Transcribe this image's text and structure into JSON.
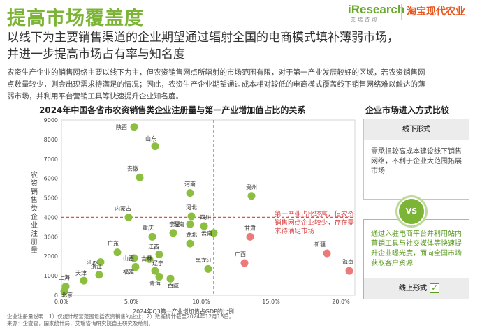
{
  "header": {
    "title": "提高市场覆盖度",
    "logo_iresearch": "iResearch",
    "logo_iresearch_sub": "艾瑞咨询",
    "logo_taobao": "淘宝现代农业"
  },
  "headline": {
    "line1": "以线下为主要销售渠道的企业期望通过辐射全国的电商模式填补薄弱市场，",
    "line2": "并进一步提高市场占有率与知名度"
  },
  "intro": {
    "line1": "农资生产企业的销售网络主要以线下为主，但农资销售网点所辐射的市场范围有限，对于第一产业发展较好的区域，若农资销售网",
    "line2": "点数量较少，则会出现需求待满足的情况；因此，农资生产企业期望通过成本相对较低的电商模式覆盖线下销售网络难以触达的薄",
    "line3": "弱市场，并利用平台营销工具等快速提升企业知名度。"
  },
  "chart_data": {
    "type": "scatter",
    "title": "2024年中国各省市农资销售类企业注册量与第一产业增加值占比的关系",
    "xlabel": "2024年Q3第一产业增加值占GDP的比例",
    "ylabel": "农资销售类企业注册量",
    "xlim": [
      0,
      21
    ],
    "ylim": [
      0,
      9000
    ],
    "x_ticks": [
      "0.0%",
      "5.0%",
      "10.0%",
      "15.0%",
      "20.0%"
    ],
    "y_ticks": [
      "0",
      "1000",
      "2000",
      "3000",
      "4000",
      "5000",
      "6000",
      "7000",
      "8000",
      "9000"
    ],
    "threshold_x": 10.9,
    "threshold_y": 4000,
    "colors": {
      "green": "#8cbf3f",
      "red": "#ec7a7a"
    },
    "points": [
      {
        "name": "陕西",
        "x": 5.2,
        "y": 8650,
        "group": "green"
      },
      {
        "name": "山东",
        "x": 6.7,
        "y": 7650,
        "group": "green"
      },
      {
        "name": "安徽",
        "x": 5.6,
        "y": 6050,
        "group": "green"
      },
      {
        "name": "河南",
        "x": 9.2,
        "y": 5250,
        "group": "green"
      },
      {
        "name": "贵州",
        "x": 13.6,
        "y": 5100,
        "group": "green"
      },
      {
        "name": "内蒙古",
        "x": 4.8,
        "y": 4000,
        "group": "green"
      },
      {
        "name": "河北",
        "x": 9.3,
        "y": 4050,
        "group": "green"
      },
      {
        "name": "湖南",
        "x": 9.2,
        "y": 3650,
        "group": "green"
      },
      {
        "name": "四川",
        "x": 10.2,
        "y": 3550,
        "group": "green"
      },
      {
        "name": "重庆",
        "x": 6.5,
        "y": 3000,
        "group": "green"
      },
      {
        "name": "云南",
        "x": 10.9,
        "y": 3200,
        "group": "green"
      },
      {
        "name": "宁夏",
        "x": 8.0,
        "y": 3200,
        "group": "green"
      },
      {
        "name": "甘肃",
        "x": 13.5,
        "y": 3000,
        "group": "red"
      },
      {
        "name": "广东",
        "x": 4.0,
        "y": 2200,
        "group": "green"
      },
      {
        "name": "湖北",
        "x": 9.2,
        "y": 2650,
        "group": "green"
      },
      {
        "name": "新疆",
        "x": 19.0,
        "y": 2150,
        "group": "red"
      },
      {
        "name": "广西",
        "x": 13.1,
        "y": 1650,
        "group": "red"
      },
      {
        "name": "江西",
        "x": 7.0,
        "y": 2100,
        "group": "green"
      },
      {
        "name": "山西",
        "x": 5.2,
        "y": 1900,
        "group": "green"
      },
      {
        "name": "吉林",
        "x": 6.3,
        "y": 1850,
        "group": "green"
      },
      {
        "name": "江苏",
        "x": 2.8,
        "y": 1700,
        "group": "green"
      },
      {
        "name": "辽宁",
        "x": 6.7,
        "y": 1250,
        "group": "green"
      },
      {
        "name": "福建",
        "x": 5.3,
        "y": 1450,
        "group": "green"
      },
      {
        "name": "黑龙江",
        "x": 10.5,
        "y": 1350,
        "group": "green"
      },
      {
        "name": "海南",
        "x": 20.6,
        "y": 1250,
        "group": "red"
      },
      {
        "name": "浙江",
        "x": 2.7,
        "y": 1050,
        "group": "green"
      },
      {
        "name": "青海",
        "x": 7.0,
        "y": 950,
        "group": "green"
      },
      {
        "name": "西藏",
        "x": 7.8,
        "y": 850,
        "group": "green"
      },
      {
        "name": "天津",
        "x": 1.6,
        "y": 750,
        "group": "green"
      },
      {
        "name": "上海",
        "x": 0.3,
        "y": 450,
        "group": "green"
      },
      {
        "name": "北京",
        "x": 0.2,
        "y": 200,
        "group": "green"
      }
    ],
    "annotation": "第一产业占比较高，但农资销售网点企业较少，存在需求待满足市场"
  },
  "side": {
    "title": "企业市场进入方式比较",
    "offline_title": "线下形式",
    "offline_desc": "需承担较高成本建设线下销售网络，不利于企业大范围拓展市场",
    "vs_label": "VS",
    "online_desc": "通过入驻电商平台并利用站内营销工具与社交媒体等快速提升企业曝光度，面向全国市场获取客户资源",
    "online_title": "线上形式"
  },
  "footnote": {
    "line1": "企业注册量说明：1）仅统计经营范围包括农资销售的企业；2）数据统计截至2024年12月18日。",
    "line2": "来源：企查查，国家统计局，艾瑞咨询研究院自主研究及绘制。"
  }
}
